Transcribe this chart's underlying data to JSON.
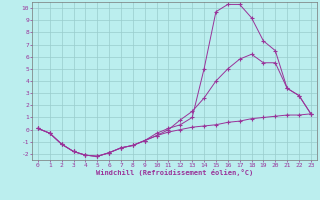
{
  "xlabel": "Windchill (Refroidissement éolien,°C)",
  "xlim": [
    -0.5,
    23.5
  ],
  "ylim": [
    -2.5,
    10.5
  ],
  "xticks": [
    0,
    1,
    2,
    3,
    4,
    5,
    6,
    7,
    8,
    9,
    10,
    11,
    12,
    13,
    14,
    15,
    16,
    17,
    18,
    19,
    20,
    21,
    22,
    23
  ],
  "yticks": [
    -2,
    -1,
    0,
    1,
    2,
    3,
    4,
    5,
    6,
    7,
    8,
    9,
    10
  ],
  "line_color": "#993399",
  "bg_color": "#bbeeee",
  "grid_color": "#99cccc",
  "line1_x": [
    0,
    1,
    2,
    3,
    4,
    5,
    6,
    7,
    8,
    9,
    10,
    11,
    12,
    13,
    14,
    15,
    16,
    17,
    18,
    19,
    20,
    21,
    22,
    23
  ],
  "line1_y": [
    0.1,
    -0.3,
    -1.2,
    -1.8,
    -2.1,
    -2.2,
    -1.9,
    -1.5,
    -1.3,
    -0.9,
    -0.5,
    -0.2,
    0.0,
    0.2,
    0.3,
    0.4,
    0.6,
    0.7,
    0.9,
    1.0,
    1.1,
    1.2,
    1.2,
    1.3
  ],
  "line2_x": [
    0,
    1,
    2,
    3,
    4,
    5,
    6,
    7,
    8,
    9,
    10,
    11,
    12,
    13,
    14,
    15,
    16,
    17,
    18,
    19,
    20,
    21,
    22,
    23
  ],
  "line2_y": [
    0.1,
    -0.3,
    -1.2,
    -1.8,
    -2.1,
    -2.2,
    -1.9,
    -1.5,
    -1.3,
    -0.9,
    -0.5,
    0.0,
    0.8,
    1.5,
    2.6,
    4.0,
    5.0,
    5.8,
    6.2,
    5.5,
    5.5,
    3.4,
    2.8,
    1.3
  ],
  "line3_x": [
    0,
    1,
    2,
    3,
    4,
    5,
    6,
    7,
    8,
    9,
    10,
    11,
    12,
    13,
    14,
    15,
    16,
    17,
    18,
    19,
    20,
    21,
    22,
    23
  ],
  "line3_y": [
    0.1,
    -0.3,
    -1.2,
    -1.8,
    -2.1,
    -2.2,
    -1.9,
    -1.5,
    -1.3,
    -0.9,
    -0.3,
    0.1,
    0.4,
    1.0,
    5.0,
    9.7,
    10.3,
    10.3,
    9.2,
    7.3,
    6.5,
    3.4,
    2.8,
    1.3
  ]
}
